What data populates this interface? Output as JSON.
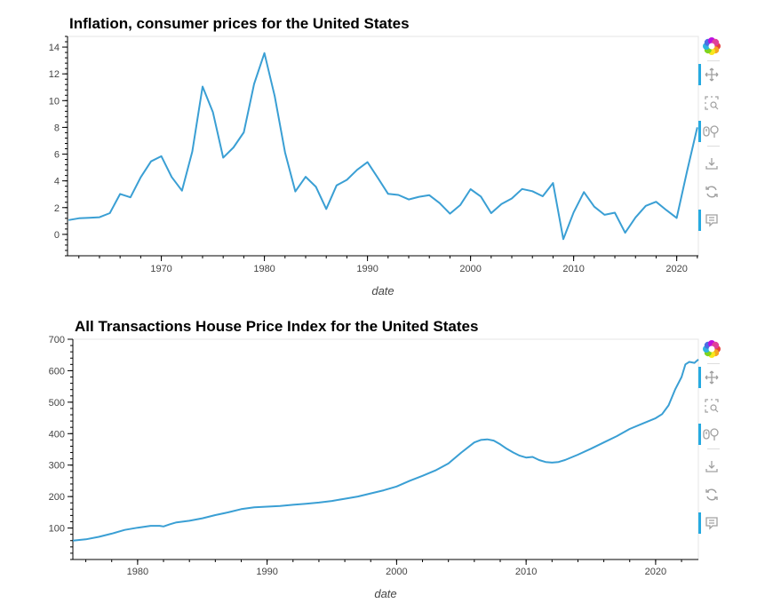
{
  "colors": {
    "line": "#3a9fd4",
    "accent": "#26aae1",
    "icon": "#a0a0a0",
    "frame": "#e5e5e5"
  },
  "toolbar": {
    "tools": [
      {
        "name": "bokeh-logo-icon",
        "active": false
      },
      {
        "name": "pan-icon",
        "active": true
      },
      {
        "name": "box-zoom-icon",
        "active": false
      },
      {
        "name": "wheel-zoom-icon",
        "active": true
      },
      {
        "name": "save-icon",
        "active": false
      },
      {
        "name": "reset-icon",
        "active": false
      },
      {
        "name": "hover-icon",
        "active": true
      }
    ]
  },
  "chart_data": [
    {
      "type": "line",
      "title": "Inflation, consumer prices for the United States",
      "xlabel": "date",
      "ylabel": "",
      "xlim": [
        1960.9,
        2022.1
      ],
      "ylim": [
        -1.6,
        14.8
      ],
      "xticks": [
        1970,
        1980,
        1990,
        2000,
        2010,
        2020
      ],
      "yticks": [
        0,
        2,
        4,
        6,
        8,
        10,
        12,
        14
      ],
      "x": [
        1961,
        1962,
        1963,
        1964,
        1965,
        1966,
        1967,
        1968,
        1969,
        1970,
        1971,
        1972,
        1973,
        1974,
        1975,
        1976,
        1977,
        1978,
        1979,
        1980,
        1981,
        1982,
        1983,
        1984,
        1985,
        1986,
        1987,
        1988,
        1989,
        1990,
        1991,
        1992,
        1993,
        1994,
        1995,
        1996,
        1997,
        1998,
        1999,
        2000,
        2001,
        2002,
        2003,
        2004,
        2005,
        2006,
        2007,
        2008,
        2009,
        2010,
        2011,
        2012,
        2013,
        2014,
        2015,
        2016,
        2017,
        2018,
        2019,
        2020,
        2021,
        2022
      ],
      "y": [
        1.07,
        1.2,
        1.24,
        1.28,
        1.59,
        3.02,
        2.77,
        4.27,
        5.46,
        5.84,
        4.29,
        3.27,
        6.18,
        11.05,
        9.14,
        5.74,
        6.5,
        7.63,
        11.25,
        13.55,
        10.33,
        6.13,
        3.21,
        4.3,
        3.55,
        1.9,
        3.66,
        4.08,
        4.83,
        5.4,
        4.23,
        3.03,
        2.95,
        2.61,
        2.81,
        2.93,
        2.34,
        1.55,
        2.19,
        3.38,
        2.83,
        1.59,
        2.27,
        2.68,
        3.39,
        3.23,
        2.85,
        3.84,
        -0.36,
        1.64,
        3.16,
        2.07,
        1.46,
        1.62,
        0.12,
        1.26,
        2.13,
        2.44,
        1.81,
        1.23,
        4.7,
        8.0
      ]
    },
    {
      "type": "line",
      "title": "All Transactions House Price Index for the United States",
      "xlabel": "date",
      "ylabel": "",
      "xlim": [
        1975.0,
        2023.3
      ],
      "ylim": [
        0,
        700
      ],
      "xticks": [
        1980,
        1990,
        2000,
        2010,
        2020
      ],
      "yticks": [
        100,
        200,
        300,
        400,
        500,
        600,
        700
      ],
      "x": [
        1975,
        1976,
        1977,
        1978,
        1979,
        1980,
        1981,
        1981.7,
        1982,
        1982.5,
        1983,
        1984,
        1985,
        1986,
        1987,
        1988,
        1989,
        1990,
        1991,
        1992,
        1993,
        1994,
        1995,
        1996,
        1997,
        1998,
        1999,
        2000,
        2001,
        2002,
        2003,
        2004,
        2005,
        2006,
        2006.5,
        2007,
        2007.5,
        2008,
        2008.5,
        2009,
        2009.5,
        2010,
        2010.5,
        2011,
        2011.5,
        2012,
        2012.5,
        2013,
        2014,
        2015,
        2016,
        2017,
        2018,
        2019,
        2020,
        2020.5,
        2021,
        2021.5,
        2022,
        2022.3,
        2022.6,
        2023,
        2023.3
      ],
      "y": [
        60,
        64,
        72,
        82,
        94,
        101,
        107,
        107,
        105,
        112,
        118,
        123,
        131,
        141,
        150,
        160,
        166,
        168,
        170,
        174,
        177,
        181,
        186,
        193,
        200,
        210,
        220,
        232,
        250,
        266,
        283,
        305,
        340,
        372,
        380,
        382,
        378,
        366,
        352,
        340,
        330,
        324,
        326,
        316,
        310,
        308,
        310,
        316,
        333,
        352,
        372,
        392,
        415,
        432,
        449,
        462,
        490,
        540,
        580,
        620,
        628,
        625,
        636
      ]
    }
  ]
}
